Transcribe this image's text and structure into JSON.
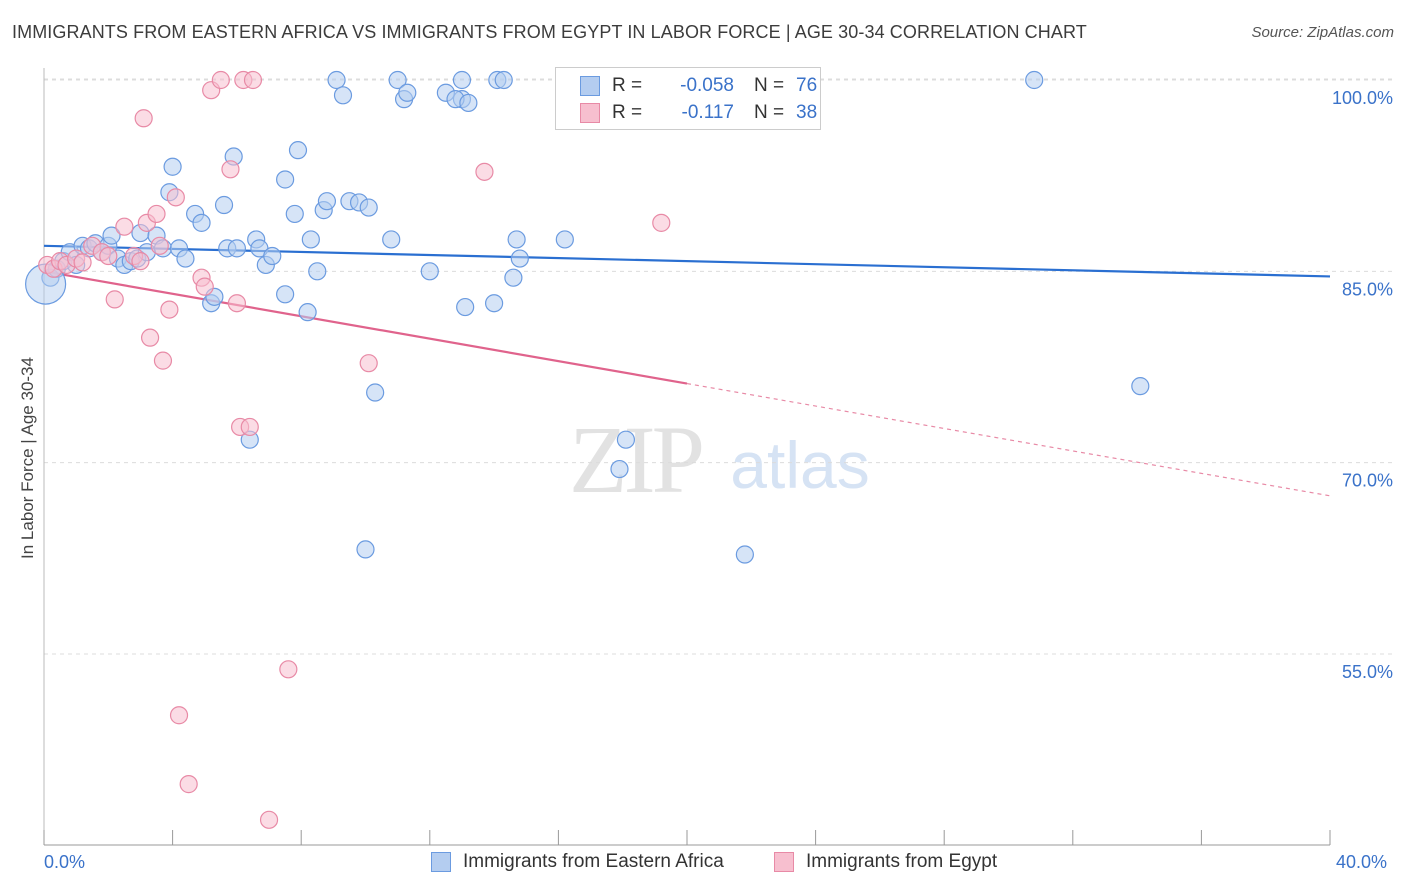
{
  "title": "IMMIGRANTS FROM EASTERN AFRICA VS IMMIGRANTS FROM EGYPT IN LABOR FORCE | AGE 30-34 CORRELATION CHART",
  "source": "Source: ZipAtlas.com",
  "watermark": {
    "zip": "ZIP",
    "atlas": "atlas"
  },
  "legend": {
    "rows": [
      {
        "r_label": "R =",
        "r_value": "-0.058",
        "n_label": "N =",
        "n_value": "76",
        "color": "#a9c7ef",
        "stroke": "#6b9be0"
      },
      {
        "r_label": "R =",
        "r_value": "-0.117",
        "n_label": "N =",
        "n_value": "38",
        "color": "#f7b8cc",
        "stroke": "#e88aa6"
      }
    ]
  },
  "bottom_legend": {
    "items": [
      {
        "label": "Immigrants from Eastern Africa"
      },
      {
        "label": "Immigrants from Egypt"
      }
    ]
  },
  "chart_data": {
    "type": "scatter",
    "ylabel": "In Labor Force | Age 30-34",
    "xlabel": "",
    "xlim": [
      0,
      40
    ],
    "ylim": [
      40,
      101
    ],
    "x_tick_labels": [
      "0.0%",
      "40.0%"
    ],
    "y_ticks": [
      55,
      70,
      85,
      100
    ],
    "y_tick_labels": [
      "55.0%",
      "70.0%",
      "85.0%",
      "100.0%"
    ],
    "grid": true,
    "series": [
      {
        "name": "Immigrants from Eastern Africa",
        "color": "#6b9be0",
        "fill": "#b4cdf0",
        "trend": {
          "x": [
            0,
            40
          ],
          "y": [
            87.0,
            84.6
          ]
        },
        "points": [
          [
            0.2,
            84.5
          ],
          [
            0.4,
            85.2
          ],
          [
            0.6,
            85.8
          ],
          [
            0.8,
            86.5
          ],
          [
            1.0,
            85.5
          ],
          [
            1.2,
            87.0
          ],
          [
            1.4,
            86.8
          ],
          [
            1.6,
            87.2
          ],
          [
            1.8,
            86.5
          ],
          [
            2.0,
            87.0
          ],
          [
            2.1,
            87.8
          ],
          [
            2.3,
            86.0
          ],
          [
            2.5,
            85.5
          ],
          [
            2.7,
            85.8
          ],
          [
            2.9,
            86.0
          ],
          [
            3.0,
            88.0
          ],
          [
            3.2,
            86.5
          ],
          [
            3.5,
            87.8
          ],
          [
            3.7,
            86.8
          ],
          [
            3.9,
            91.2
          ],
          [
            4.0,
            93.2
          ],
          [
            4.2,
            86.8
          ],
          [
            4.4,
            86.0
          ],
          [
            4.7,
            89.5
          ],
          [
            4.9,
            88.8
          ],
          [
            5.2,
            82.5
          ],
          [
            5.3,
            83.0
          ],
          [
            5.6,
            90.2
          ],
          [
            5.9,
            94.0
          ],
          [
            5.7,
            86.8
          ],
          [
            6.0,
            86.8
          ],
          [
            6.4,
            71.8
          ],
          [
            6.6,
            87.5
          ],
          [
            6.7,
            86.8
          ],
          [
            6.9,
            85.5
          ],
          [
            7.1,
            86.2
          ],
          [
            7.5,
            83.2
          ],
          [
            7.5,
            92.2
          ],
          [
            7.8,
            89.5
          ],
          [
            7.9,
            94.5
          ],
          [
            8.2,
            81.8
          ],
          [
            8.3,
            87.5
          ],
          [
            8.5,
            85.0
          ],
          [
            8.7,
            89.8
          ],
          [
            8.8,
            90.5
          ],
          [
            9.1,
            100.0
          ],
          [
            9.3,
            98.8
          ],
          [
            9.5,
            90.5
          ],
          [
            9.8,
            90.4
          ],
          [
            10.1,
            90.0
          ],
          [
            10.3,
            75.5
          ],
          [
            10.0,
            63.2
          ],
          [
            10.8,
            87.5
          ],
          [
            11.0,
            100.0
          ],
          [
            11.2,
            98.5
          ],
          [
            11.3,
            99.0
          ],
          [
            12.0,
            85.0
          ],
          [
            12.5,
            99.0
          ],
          [
            13.0,
            98.5
          ],
          [
            12.8,
            98.5
          ],
          [
            13.0,
            100.0
          ],
          [
            13.2,
            98.2
          ],
          [
            13.1,
            82.2
          ],
          [
            14.1,
            100.0
          ],
          [
            14.3,
            100.0
          ],
          [
            14.0,
            82.5
          ],
          [
            14.6,
            84.5
          ],
          [
            14.8,
            86.0
          ],
          [
            14.7,
            87.5
          ],
          [
            16.2,
            87.5
          ],
          [
            16.9,
            100.0
          ],
          [
            17.9,
            69.5
          ],
          [
            18.1,
            71.8
          ],
          [
            21.8,
            62.8
          ],
          [
            30.8,
            100.0
          ],
          [
            34.1,
            76.0
          ]
        ],
        "big_point": [
          0.05,
          84.0
        ]
      },
      {
        "name": "Immigrants from Egypt",
        "color": "#e88aa6",
        "fill": "#f7bfcf",
        "trend": {
          "x": [
            0,
            20
          ],
          "y": [
            85.0,
            76.2
          ]
        },
        "trend_dashed": {
          "x": [
            20,
            40
          ],
          "y": [
            76.2,
            67.4
          ]
        },
        "points": [
          [
            0.1,
            85.5
          ],
          [
            0.3,
            85.2
          ],
          [
            0.5,
            85.8
          ],
          [
            0.7,
            85.5
          ],
          [
            1.0,
            86.0
          ],
          [
            1.2,
            85.7
          ],
          [
            1.5,
            87.0
          ],
          [
            1.8,
            86.5
          ],
          [
            2.0,
            86.2
          ],
          [
            2.2,
            82.8
          ],
          [
            2.5,
            88.5
          ],
          [
            2.8,
            86.2
          ],
          [
            3.0,
            85.8
          ],
          [
            3.1,
            97.0
          ],
          [
            3.2,
            88.8
          ],
          [
            3.3,
            79.8
          ],
          [
            3.5,
            89.5
          ],
          [
            3.6,
            87.0
          ],
          [
            3.7,
            78.0
          ],
          [
            3.9,
            82.0
          ],
          [
            4.1,
            90.8
          ],
          [
            4.2,
            50.2
          ],
          [
            4.5,
            44.8
          ],
          [
            4.9,
            84.5
          ],
          [
            5.0,
            83.8
          ],
          [
            5.2,
            99.2
          ],
          [
            5.5,
            100.0
          ],
          [
            5.8,
            93.0
          ],
          [
            6.0,
            82.5
          ],
          [
            6.1,
            72.8
          ],
          [
            6.2,
            100.0
          ],
          [
            6.4,
            72.8
          ],
          [
            6.5,
            100.0
          ],
          [
            7.0,
            42.0
          ],
          [
            7.6,
            53.8
          ],
          [
            10.1,
            77.8
          ],
          [
            13.7,
            92.8
          ],
          [
            19.2,
            88.8
          ]
        ]
      }
    ]
  }
}
